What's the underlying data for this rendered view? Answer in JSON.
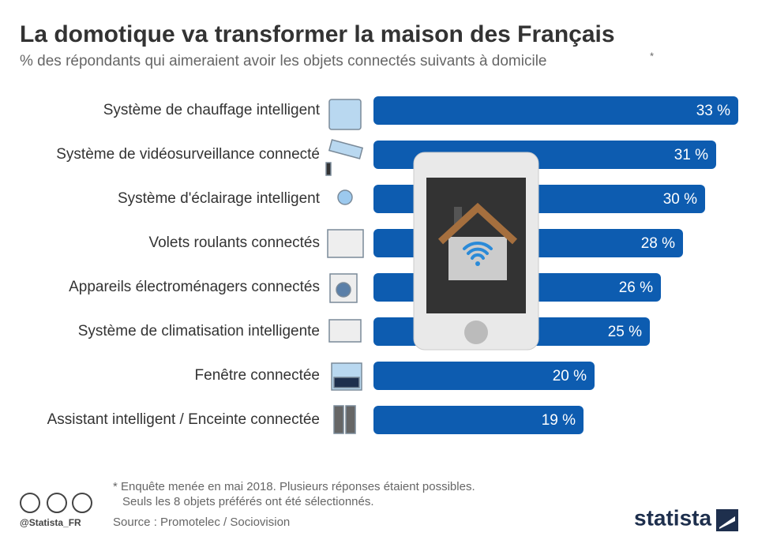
{
  "chart_data": {
    "type": "bar",
    "orientation": "horizontal",
    "title": "La domotique va transformer la maison des Français",
    "subtitle": "% des répondants qui aimeraient avoir les objets connectés suivants à domicile",
    "subtitle_note": "*",
    "categories": [
      "Système de chauffage intelligent",
      "Système de vidéosurveillance connecté",
      "Système d'éclairage intelligent",
      "Volets roulants connectés",
      "Appareils électroménagers connectés",
      "Système de climatisation intelligente",
      "Fenêtre connectée",
      "Assistant intelligent / Enceinte connectée"
    ],
    "values": [
      33,
      31,
      30,
      28,
      26,
      25,
      20,
      19
    ],
    "value_labels": [
      "33 %",
      "31 %",
      "30 %",
      "28 %",
      "26 %",
      "25 %",
      "20 %",
      "19 %"
    ],
    "color": "#0d5cb0",
    "footnote": [
      "* Enquête menée en mai 2018. Plusieurs réponses étaient possibles.",
      "Seuls les 8 objets préférés ont été sélectionnés."
    ],
    "source": "Source : Promotelec / Sociovision",
    "handle": "@Statista_FR",
    "brand": "statista"
  }
}
